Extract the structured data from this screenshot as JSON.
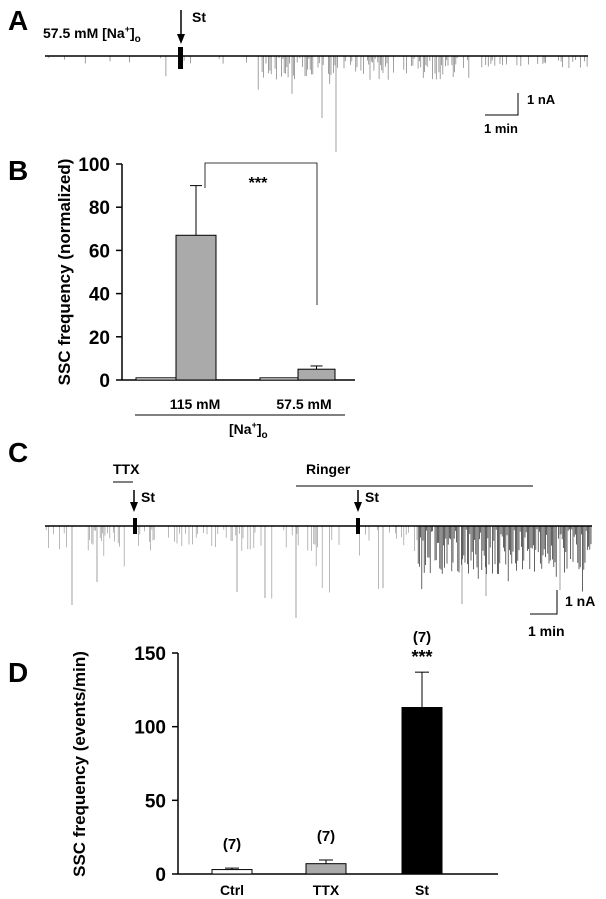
{
  "panels": {
    "A": {
      "letter": "A",
      "condition_label": "57.5 mM [Na",
      "condition_sup": "+",
      "condition_sub": "o",
      "condition_close": "]",
      "stim_label": "St",
      "scale_y": "1 nA",
      "scale_x": "1 min"
    },
    "B": {
      "letter": "B"
    },
    "C": {
      "letter": "C",
      "ttx_label": "TTX",
      "ringer_label": "Ringer",
      "stim_label_1": "St",
      "stim_label_2": "St",
      "scale_y": "1 nA",
      "scale_x": "1 min"
    },
    "D": {
      "letter": "D"
    }
  },
  "chart_data": [
    {
      "id": "B",
      "type": "bar",
      "ylabel": "SSC frequency (normalized)",
      "ylim": [
        0,
        100
      ],
      "yticks": [
        "0",
        "20",
        "40",
        "60",
        "80",
        "100"
      ],
      "groups": [
        "115 mM",
        "57.5 mM"
      ],
      "group_label": "[Na",
      "group_label_sup": "+",
      "group_label_close": "]",
      "group_label_sub": "o",
      "bars": [
        {
          "group": "115 mM",
          "value": 1,
          "error": 0,
          "fill": "#ffffff"
        },
        {
          "group": "115 mM",
          "value": 67,
          "error": 23,
          "fill": "#aaaaaa"
        },
        {
          "group": "57.5 mM",
          "value": 1,
          "error": 0,
          "fill": "#ffffff"
        },
        {
          "group": "57.5 mM",
          "value": 5,
          "error": 1.5,
          "fill": "#aaaaaa"
        }
      ],
      "significance": "***"
    },
    {
      "id": "D",
      "type": "bar",
      "ylabel": "SSC frequency (events/min)",
      "ylim": [
        0,
        150
      ],
      "yticks": [
        "0",
        "50",
        "100",
        "150"
      ],
      "categories": [
        "Ctrl",
        "TTX",
        "St"
      ],
      "values": [
        3,
        7,
        113
      ],
      "errors": [
        1,
        2.5,
        24
      ],
      "n_labels": [
        "(7)",
        "(7)",
        "(7)"
      ],
      "fills": [
        "#ffffff",
        "#aaaaaa",
        "#000000"
      ],
      "significance": "***"
    }
  ]
}
